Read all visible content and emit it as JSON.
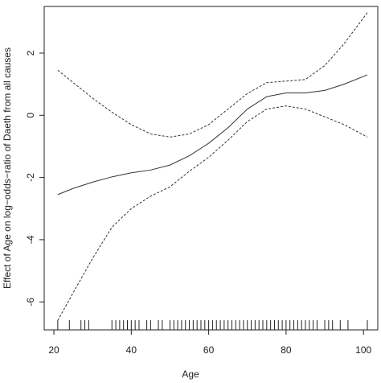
{
  "chart_data": {
    "type": "line",
    "x_label": "Age",
    "y_label": "Effect of Age on log−odds−ratio of Daeth from all causes",
    "x": [
      21,
      25,
      30,
      35,
      40,
      45,
      50,
      55,
      60,
      65,
      70,
      75,
      80,
      85,
      90,
      95,
      101
    ],
    "series": [
      {
        "color": "#333333",
        "dashed": false,
        "values": [
          -2.55,
          -2.35,
          -2.15,
          -1.98,
          -1.85,
          -1.76,
          -1.6,
          -1.3,
          -0.9,
          -0.4,
          0.2,
          0.6,
          0.72,
          0.72,
          0.8,
          1.0,
          1.3
        ]
      },
      {
        "color": "#333333",
        "dashed": true,
        "values": [
          1.45,
          1.05,
          0.55,
          0.1,
          -0.3,
          -0.6,
          -0.7,
          -0.6,
          -0.3,
          0.2,
          0.7,
          1.05,
          1.1,
          1.15,
          1.6,
          2.3,
          3.3
        ]
      },
      {
        "color": "#333333",
        "dashed": true,
        "values": [
          -6.6,
          -5.7,
          -4.6,
          -3.6,
          -3.0,
          -2.6,
          -2.3,
          -1.8,
          -1.35,
          -0.8,
          -0.2,
          0.2,
          0.3,
          0.2,
          -0.05,
          -0.3,
          -0.7
        ]
      }
    ],
    "rug": [
      21,
      24,
      27,
      28,
      29,
      35,
      36,
      37,
      38,
      39,
      40,
      41,
      42,
      44,
      45,
      47,
      48,
      50,
      51,
      52,
      53,
      54,
      55,
      56,
      57,
      58,
      59,
      60,
      61,
      62,
      63,
      64,
      65,
      66,
      67,
      68,
      69,
      70,
      71,
      72,
      73,
      74,
      75,
      76,
      77,
      78,
      79,
      80,
      81,
      82,
      83,
      84,
      85,
      86,
      87,
      88,
      90,
      91,
      92,
      94,
      96,
      101
    ],
    "xlim": [
      17.5,
      103.7
    ],
    "ylim": [
      -6.9,
      3.5
    ],
    "xticks": [
      20,
      40,
      60,
      80,
      100
    ],
    "yticks": [
      -6,
      -4,
      -2,
      0,
      2
    ]
  }
}
